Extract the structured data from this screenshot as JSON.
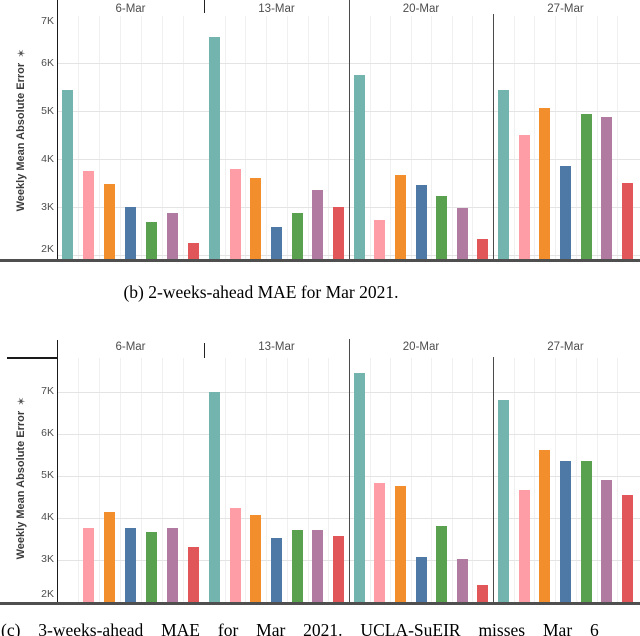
{
  "figure": {
    "captions": {
      "b": "(b) 2-weeks-ahead MAE for Mar 2021.",
      "c": "(c) 3-weeks-ahead MAE for Mar 2021. UCLA-SuEIR misses Mar 6"
    }
  },
  "chart_data": [
    {
      "type": "bar",
      "panel": "b",
      "title": "(b) 2-weeks-ahead MAE for Mar 2021.",
      "ylabel": "Weekly Mean Absolute Error",
      "ylabel_suffix_icon": "✶",
      "units": "thousands (K)",
      "categories": [
        "6-Mar",
        "13-Mar",
        "20-Mar",
        "27-Mar"
      ],
      "ytick_labels": [
        "2K",
        "3K",
        "4K",
        "5K",
        "6K",
        "7K"
      ],
      "ylim": [
        1.9,
        7.4
      ],
      "grid": true,
      "legend": "none",
      "series": [
        {
          "name": "teal",
          "color": "#74b4ae",
          "values": [
            5.44,
            6.55,
            5.76,
            5.44
          ]
        },
        {
          "name": "pink",
          "color": "#ff9da7",
          "values": [
            3.74,
            3.79,
            2.72,
            4.49
          ]
        },
        {
          "name": "orange",
          "color": "#f28e2b",
          "values": [
            3.48,
            3.61,
            3.67,
            5.07
          ]
        },
        {
          "name": "blue",
          "color": "#4e79a7",
          "values": [
            3.0,
            2.58,
            3.46,
            3.86
          ]
        },
        {
          "name": "green",
          "color": "#59a14f",
          "values": [
            2.68,
            2.87,
            3.23,
            4.93
          ]
        },
        {
          "name": "purple",
          "color": "#b07aa1",
          "values": [
            2.88,
            3.35,
            2.97,
            4.87
          ]
        },
        {
          "name": "red",
          "color": "#e15759",
          "values": [
            2.24,
            3.01,
            2.33,
            3.51
          ]
        }
      ]
    },
    {
      "type": "bar",
      "panel": "c",
      "title": "(c) 3-weeks-ahead MAE for Mar 2021. UCLA-SuEIR misses Mar 6",
      "ylabel": "Weekly Mean Absolute Error",
      "ylabel_suffix_icon": "✶",
      "units": "thousands (K)",
      "categories": [
        "6-Mar",
        "13-Mar",
        "20-Mar",
        "27-Mar"
      ],
      "ytick_labels": [
        "2K",
        "3K",
        "4K",
        "5K",
        "6K",
        "7K"
      ],
      "ylim": [
        2.0,
        7.8
      ],
      "grid": true,
      "legend": "none",
      "note": "teal series has no bar for 6-Mar",
      "series": [
        {
          "name": "teal",
          "color": "#74b4ae",
          "values": [
            null,
            7.0,
            7.45,
            6.8
          ]
        },
        {
          "name": "pink",
          "color": "#ff9da7",
          "values": [
            3.76,
            4.23,
            4.83,
            4.67
          ]
        },
        {
          "name": "orange",
          "color": "#f28e2b",
          "values": [
            4.14,
            4.06,
            4.75,
            5.62
          ]
        },
        {
          "name": "blue",
          "color": "#4e79a7",
          "values": [
            3.76,
            3.53,
            3.07,
            5.34
          ]
        },
        {
          "name": "green",
          "color": "#59a14f",
          "values": [
            3.66,
            3.72,
            3.81,
            5.34
          ]
        },
        {
          "name": "purple",
          "color": "#b07aa1",
          "values": [
            3.76,
            3.72,
            3.03,
            4.9
          ]
        },
        {
          "name": "red",
          "color": "#e15759",
          "values": [
            3.31,
            3.57,
            2.41,
            4.53
          ]
        }
      ]
    }
  ]
}
